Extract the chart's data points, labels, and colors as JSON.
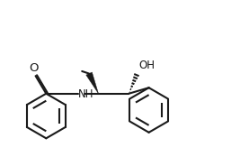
{
  "background_color": "#ffffff",
  "line_color": "#1a1a1a",
  "line_width": 1.5,
  "font_size": 8.5,
  "figsize": [
    2.67,
    1.84
  ],
  "dpi": 100,
  "xlim": [
    0,
    10
  ],
  "ylim": [
    0,
    7
  ]
}
